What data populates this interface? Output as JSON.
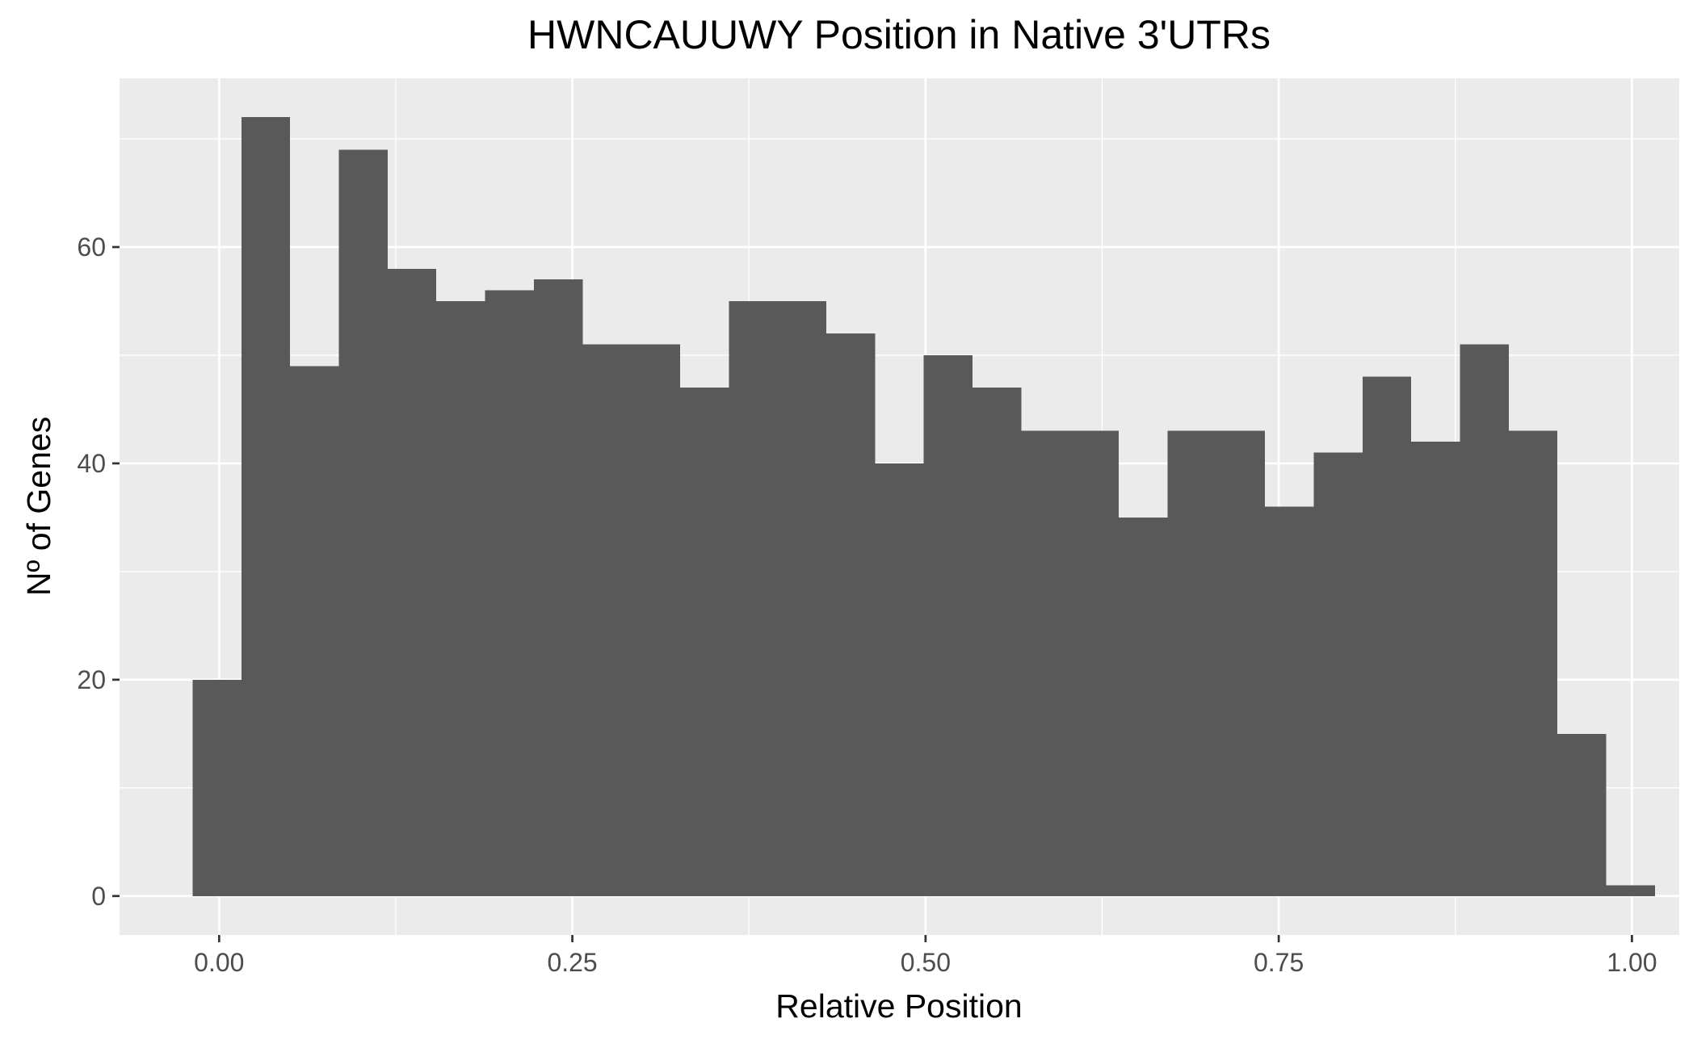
{
  "chart_data": {
    "type": "bar",
    "title": "HWNCAUUWY Position in Native 3'UTRs",
    "xlabel": "Relative Position",
    "ylabel": "Nº of Genes",
    "bin_width": 0.0345,
    "bins": [
      {
        "x": -0.0015,
        "value": 20
      },
      {
        "x": 0.033,
        "value": 72
      },
      {
        "x": 0.0675,
        "value": 49
      },
      {
        "x": 0.102,
        "value": 69
      },
      {
        "x": 0.1365,
        "value": 58
      },
      {
        "x": 0.171,
        "value": 55
      },
      {
        "x": 0.2055,
        "value": 56
      },
      {
        "x": 0.24,
        "value": 57
      },
      {
        "x": 0.2745,
        "value": 51
      },
      {
        "x": 0.309,
        "value": 51
      },
      {
        "x": 0.3435,
        "value": 47
      },
      {
        "x": 0.378,
        "value": 55
      },
      {
        "x": 0.4125,
        "value": 55
      },
      {
        "x": 0.447,
        "value": 52
      },
      {
        "x": 0.4815,
        "value": 40
      },
      {
        "x": 0.516,
        "value": 50
      },
      {
        "x": 0.5505,
        "value": 47
      },
      {
        "x": 0.585,
        "value": 43
      },
      {
        "x": 0.6195,
        "value": 43
      },
      {
        "x": 0.654,
        "value": 35
      },
      {
        "x": 0.6885,
        "value": 43
      },
      {
        "x": 0.723,
        "value": 43
      },
      {
        "x": 0.7575,
        "value": 36
      },
      {
        "x": 0.792,
        "value": 41
      },
      {
        "x": 0.8265,
        "value": 48
      },
      {
        "x": 0.861,
        "value": 42
      },
      {
        "x": 0.8955,
        "value": 51
      },
      {
        "x": 0.93,
        "value": 43
      },
      {
        "x": 0.9645,
        "value": 15
      },
      {
        "x": 0.999,
        "value": 1
      }
    ],
    "xlim": [
      -0.0705,
      1.0335
    ],
    "ylim": [
      -3.6,
      75.6
    ],
    "x_ticks": [
      0,
      0.25,
      0.5,
      0.75,
      1
    ],
    "x_tick_labels": [
      "0.00",
      "0.25",
      "0.50",
      "0.75",
      "1.00"
    ],
    "y_ticks": [
      0,
      20,
      40,
      60
    ],
    "y_tick_labels": [
      "0",
      "20",
      "40",
      "60"
    ],
    "y_minor_ticks": [
      10,
      30,
      50,
      70
    ],
    "grid": true,
    "legend": "none",
    "colors": {
      "bar": "#595959",
      "panel": "#ebebeb",
      "grid": "#ffffff",
      "tick_label": "#4d4d4d",
      "tick_mark": "#333333"
    }
  }
}
